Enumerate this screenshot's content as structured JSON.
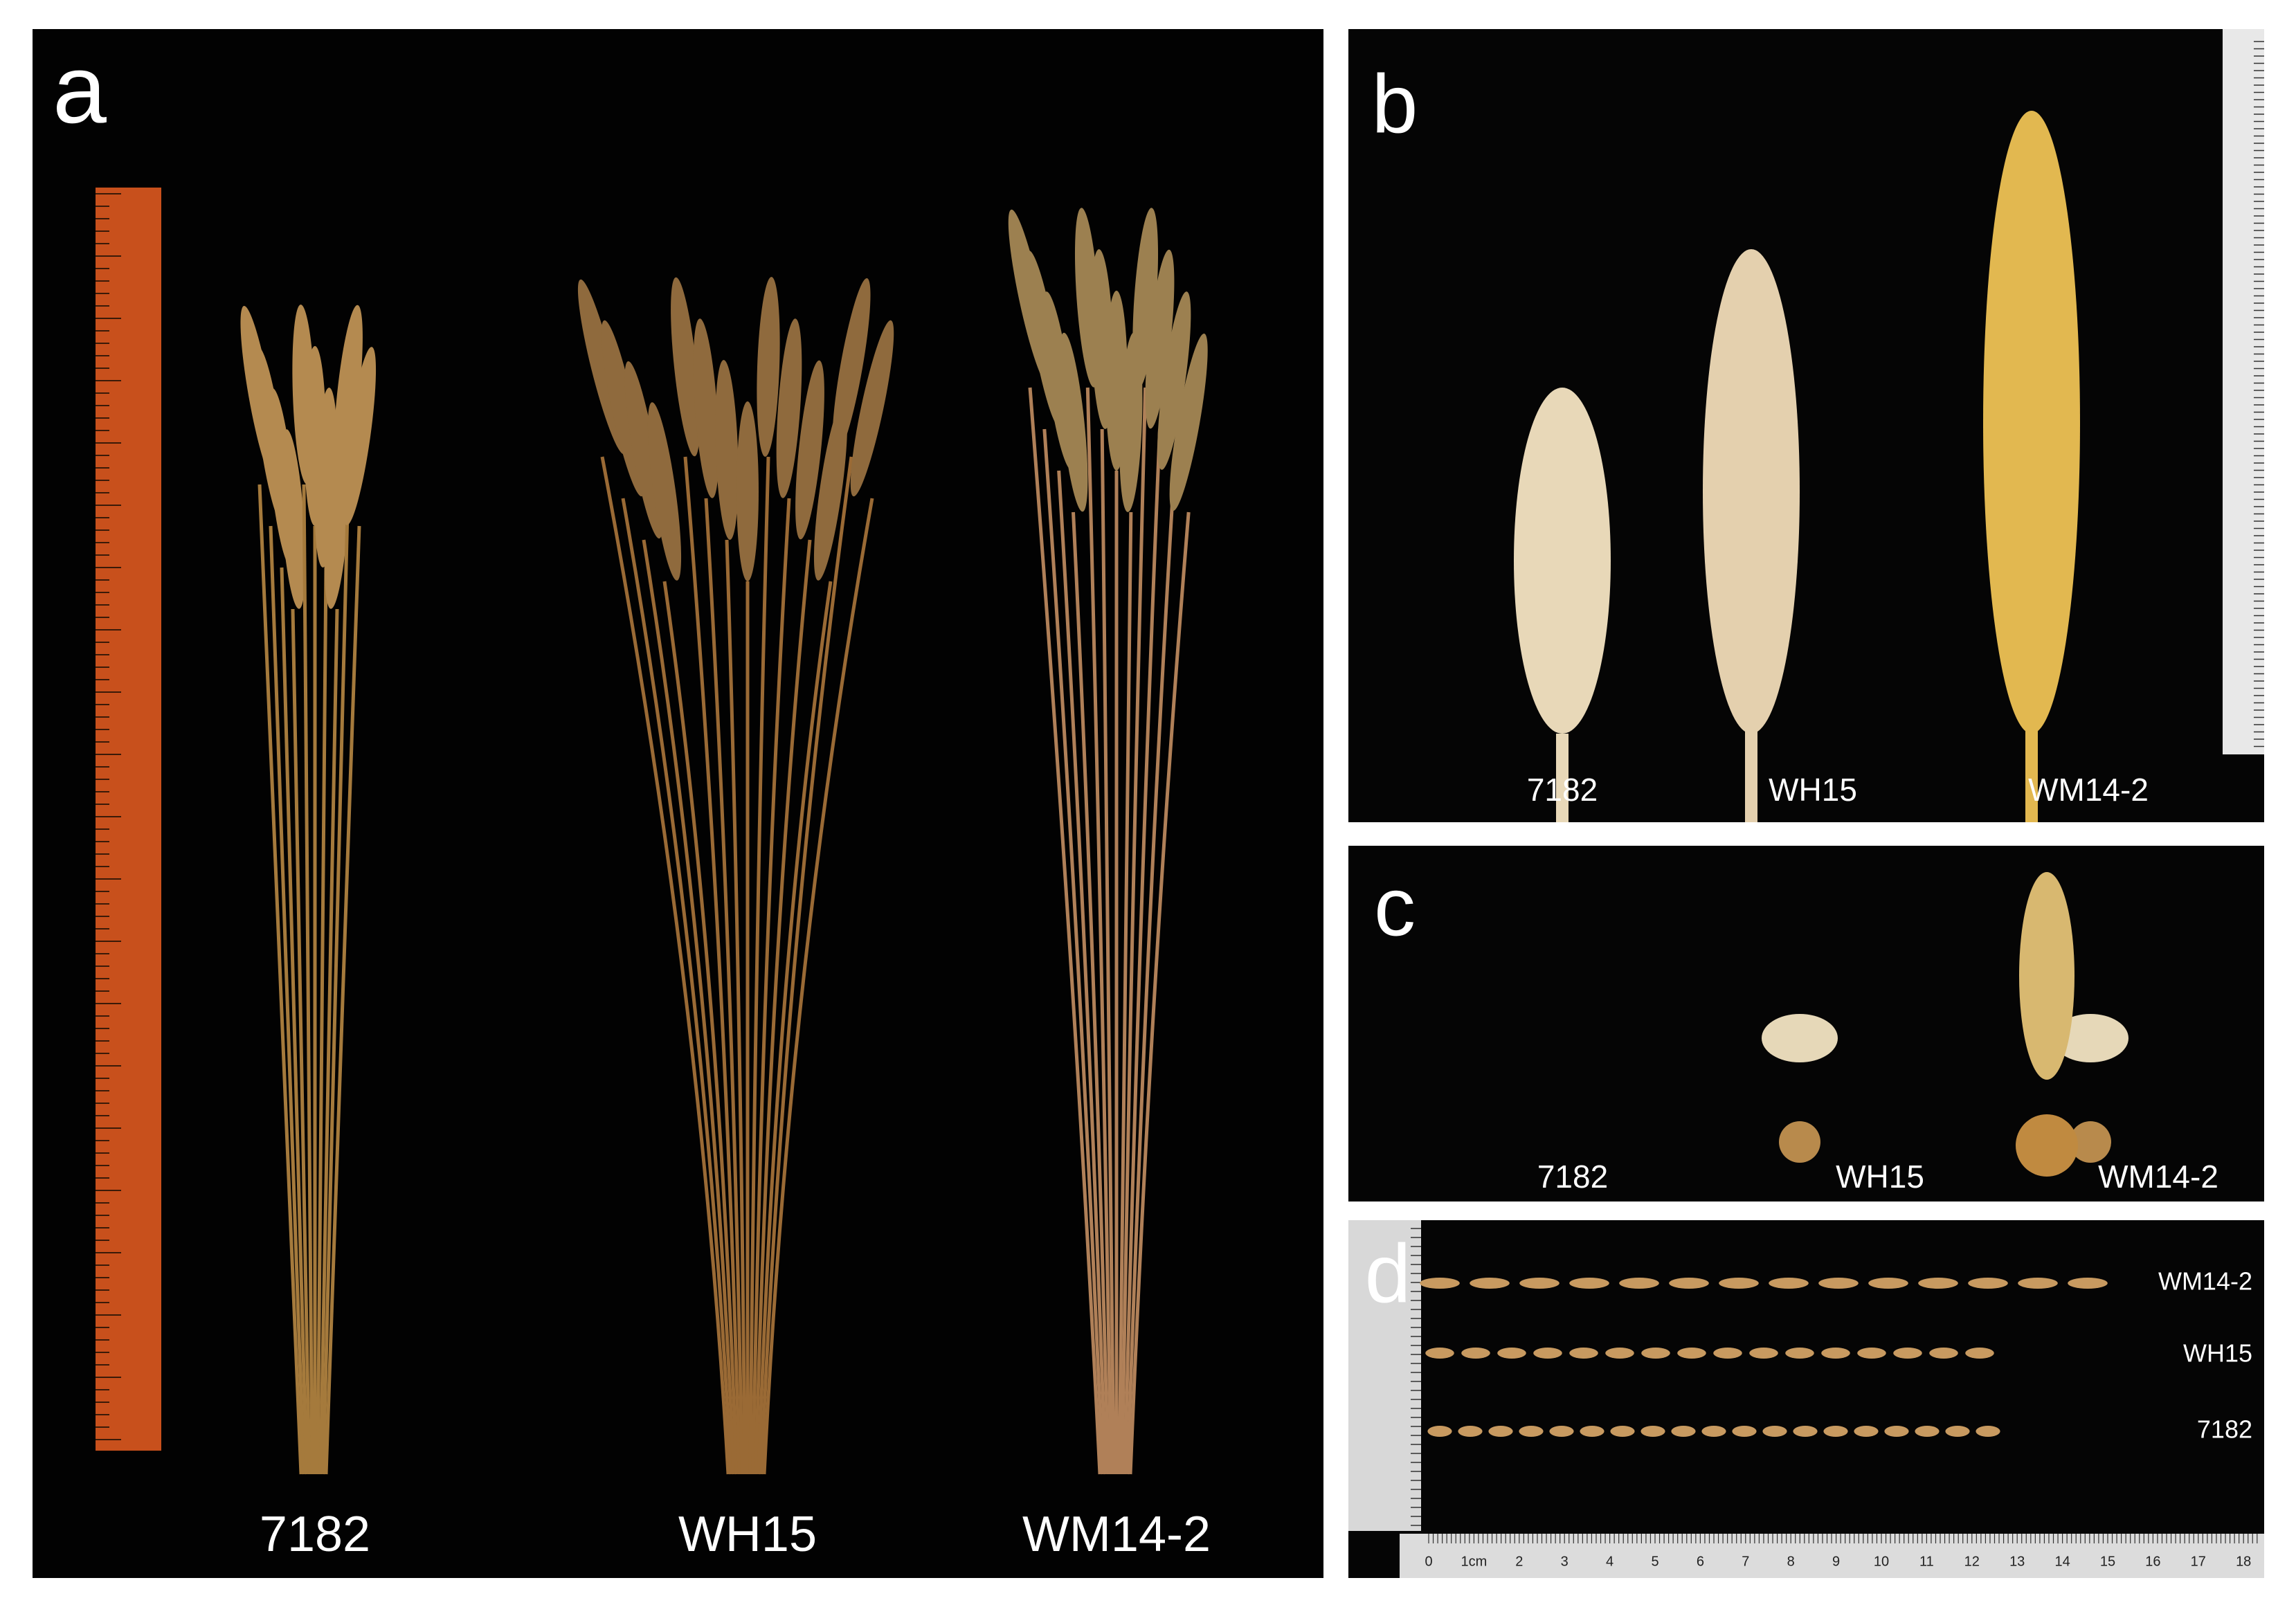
{
  "panels": [
    {
      "letter": "a",
      "labels": [
        "7182",
        "WH15",
        "WM14-2"
      ]
    },
    {
      "letter": "b",
      "labels": [
        "7182",
        "WH15",
        "WM14-2"
      ]
    },
    {
      "letter": "c",
      "labels": [
        "7182",
        "WH15",
        "WM14-2"
      ]
    },
    {
      "letter": "d",
      "labels": [
        "WM14-2",
        "WH15",
        "7182"
      ],
      "ruler_labels": [
        "0",
        "1cm",
        "2",
        "3",
        "4",
        "5",
        "6",
        "7",
        "8",
        "9",
        "10",
        "11",
        "12",
        "13",
        "14",
        "15",
        "16",
        "17",
        "18"
      ]
    }
  ]
}
